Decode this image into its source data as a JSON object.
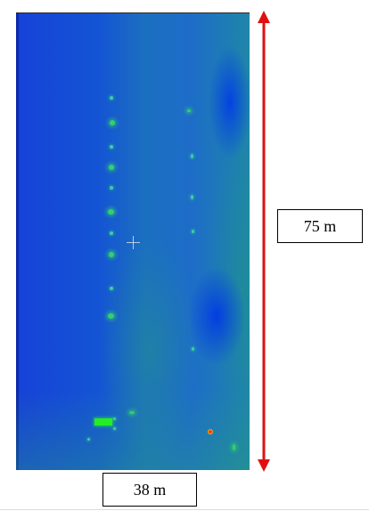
{
  "heatmap": {
    "colors": {
      "background_low": "#1642d8",
      "background_mid": "#1b6fc0",
      "background_right": "#1f86a8",
      "hotspot_green": "#22ee22",
      "hotspot_red": "#ff3010"
    }
  },
  "dimensions": {
    "height_label": "75 m",
    "width_label": "38 m",
    "arrow_color": "#e01010"
  }
}
